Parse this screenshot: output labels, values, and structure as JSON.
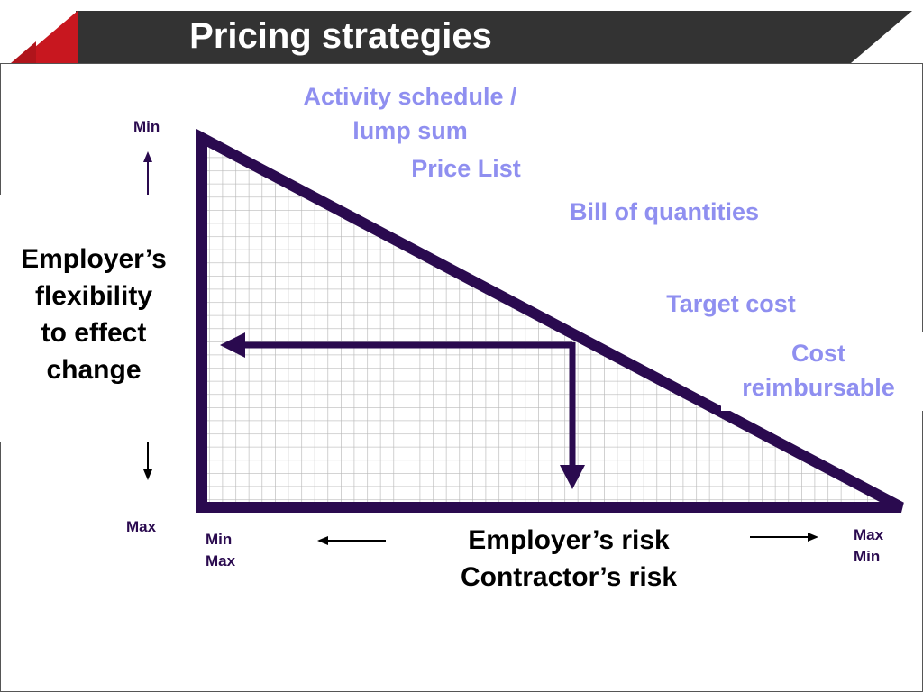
{
  "header": {
    "title": "Pricing strategies",
    "bar_color": "#333333",
    "accent_color": "#c8171f"
  },
  "diagram": {
    "triangle_color": "#2a0a4f",
    "label_color": "#8f8ff0",
    "strategies": [
      {
        "line1": "Activity schedule /",
        "line2": "lump sum"
      },
      {
        "line1": "Price List",
        "line2": ""
      },
      {
        "line1": "Bill of quantities",
        "line2": ""
      },
      {
        "line1": "Target cost",
        "line2": ""
      },
      {
        "line1": "Cost",
        "line2": "reimbursable"
      }
    ],
    "y_axis": {
      "label_line1": "Employer’s",
      "label_line2": "flexibility",
      "label_line3": "to effect",
      "label_line4": "change",
      "top": "Min",
      "bottom": "Max"
    },
    "x_axis": {
      "line1": "Employer’s risk",
      "line2": "Contractor’s risk",
      "left_top": "Min",
      "left_bottom": "Max",
      "right_top": "Max",
      "right_bottom": "Min"
    }
  }
}
